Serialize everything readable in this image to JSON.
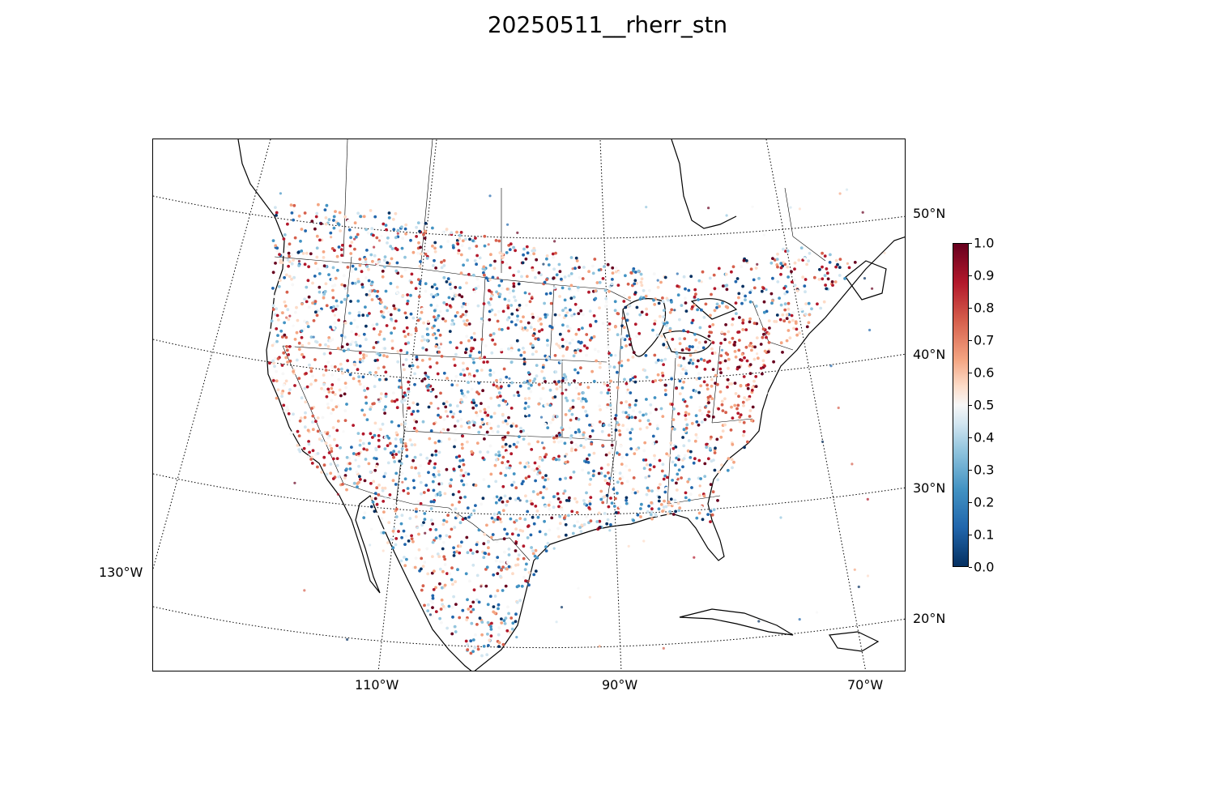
{
  "title": "20250511__rherr_stn",
  "map": {
    "projection": "lambert-conformal",
    "lat_labels": [
      "50°N",
      "40°N",
      "30°N",
      "20°N"
    ],
    "lon_labels": [
      "130°W",
      "110°W",
      "90°W",
      "70°W"
    ],
    "gridlines": "dotted",
    "marker_field": "rherr_stn"
  },
  "colorbar": {
    "colormap": "RdBu_r",
    "min": 0.0,
    "max": 1.0,
    "ticks": [
      "0.0",
      "0.1",
      "0.2",
      "0.3",
      "0.4",
      "0.5",
      "0.6",
      "0.7",
      "0.8",
      "0.9",
      "1.0"
    ],
    "colors": [
      "#053061",
      "#2166ac",
      "#4393c3",
      "#92c5de",
      "#d1e5f0",
      "#f7f7f7",
      "#fddbc7",
      "#f4a582",
      "#d6604d",
      "#b2182b",
      "#67001f"
    ]
  }
}
